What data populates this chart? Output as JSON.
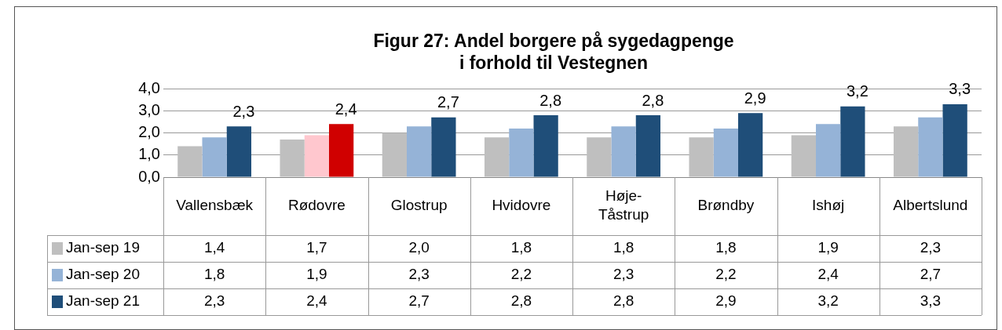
{
  "chart_data": {
    "type": "bar",
    "title": [
      "Figur 27: Andel borgere på sygedagpenge",
      "i forhold til Vestegnen"
    ],
    "categories": [
      "Vallensbæk",
      "Rødovre",
      "Glostrup",
      "Hvidovre",
      "Høje-Tåstrup",
      "Brøndby",
      "Ishøj",
      "Albertslund"
    ],
    "series": [
      {
        "name": "Jan-sep 19",
        "color": "#bfbfbf",
        "colors": [
          "#bfbfbf",
          "#bfbfbf",
          "#bfbfbf",
          "#bfbfbf",
          "#bfbfbf",
          "#bfbfbf",
          "#bfbfbf",
          "#bfbfbf"
        ],
        "values": [
          1.4,
          1.7,
          2.0,
          1.8,
          1.8,
          1.8,
          1.9,
          2.3
        ],
        "value_labels": [
          "1,4",
          "1,7",
          "2,0",
          "1,8",
          "1,8",
          "1,8",
          "1,9",
          "2,3"
        ]
      },
      {
        "name": "Jan-sep 20",
        "color": "#95b3d7",
        "colors": [
          "#95b3d7",
          "#ffc7ce",
          "#95b3d7",
          "#95b3d7",
          "#95b3d7",
          "#95b3d7",
          "#95b3d7",
          "#95b3d7"
        ],
        "values": [
          1.8,
          1.9,
          2.3,
          2.2,
          2.3,
          2.2,
          2.4,
          2.7
        ],
        "value_labels": [
          "1,8",
          "1,9",
          "2,3",
          "2,2",
          "2,3",
          "2,2",
          "2,4",
          "2,7"
        ]
      },
      {
        "name": "Jan-sep 21",
        "color": "#1f4e79",
        "colors": [
          "#1f4e79",
          "#d00000",
          "#1f4e79",
          "#1f4e79",
          "#1f4e79",
          "#1f4e79",
          "#1f4e79",
          "#1f4e79"
        ],
        "values": [
          2.3,
          2.4,
          2.7,
          2.8,
          2.8,
          2.9,
          3.2,
          3.3
        ],
        "value_labels": [
          "2,3",
          "2,4",
          "2,7",
          "2,8",
          "2,8",
          "2,9",
          "3,2",
          "3,3"
        ]
      }
    ],
    "annotations": [
      "2,3",
      "2,4",
      "2,7",
      "2,8",
      "2,8",
      "2,9",
      "3,2",
      "3,3"
    ],
    "ylim": [
      0,
      4
    ],
    "yticks": [
      {
        "value": 0,
        "label": "0,0"
      },
      {
        "value": 1,
        "label": "1,0"
      },
      {
        "value": 2,
        "label": "2,0"
      },
      {
        "value": 3,
        "label": "3,0"
      },
      {
        "value": 4,
        "label": "4,0"
      }
    ],
    "grid": "y",
    "legend": "bottom"
  }
}
